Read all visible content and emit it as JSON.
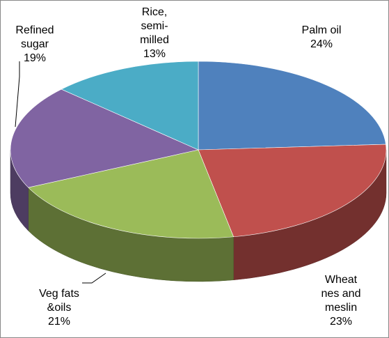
{
  "chart_data": {
    "type": "pie",
    "categories": [
      "Palm oil",
      "Wheat nes and meslin",
      "Veg fats &oils",
      "Refined sugar",
      "Rice, semi-milled"
    ],
    "values": [
      24,
      23,
      21,
      19,
      13
    ],
    "value_labels": [
      "24%",
      "23%",
      "21%",
      "19%",
      "13%"
    ],
    "colors": [
      "#4f81bd",
      "#c0504d",
      "#9bbb59",
      "#8064a2",
      "#4bacc6"
    ]
  }
}
